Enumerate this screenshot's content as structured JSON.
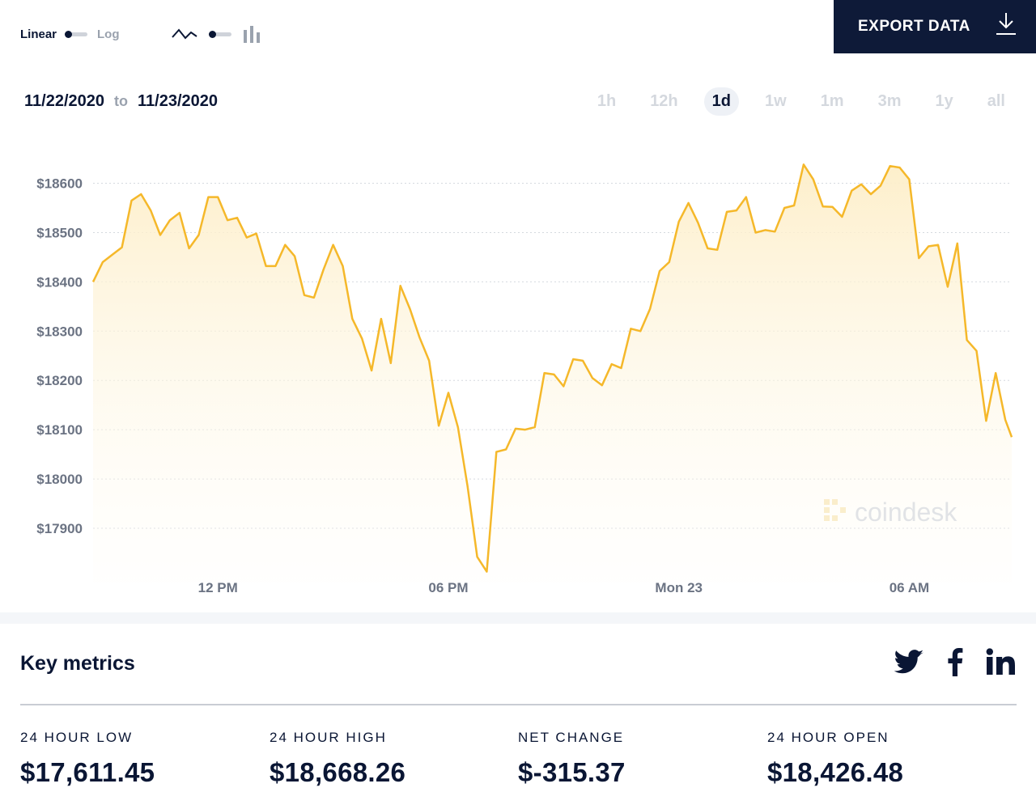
{
  "toolbar": {
    "scale_linear": "Linear",
    "scale_log": "Log",
    "scale_selected": "Linear",
    "chart_type_icons": [
      "line-chart-icon",
      "bar-chart-icon"
    ]
  },
  "export": {
    "label": "EXPORT DATA",
    "icon": "download-icon"
  },
  "date_range": {
    "from": "11/22/2020",
    "to_word": "to",
    "to": "11/23/2020"
  },
  "periods": [
    "1h",
    "12h",
    "1d",
    "1w",
    "1m",
    "3m",
    "1y",
    "all"
  ],
  "period_selected": "1d",
  "watermark": "coindesk",
  "colors": {
    "line": "#f5b82a",
    "fill": "#fdf0cf",
    "dark": "#0e1a38",
    "grid": "#d5d9df"
  },
  "chart_data": {
    "type": "area",
    "title": "",
    "xlabel": "",
    "ylabel": "",
    "y_ticks": [
      "$18600",
      "$18500",
      "$18400",
      "$18300",
      "$18200",
      "$18100",
      "$18000",
      "$17900"
    ],
    "y_tick_values": [
      18600,
      18500,
      18400,
      18300,
      18200,
      18100,
      18000,
      17900
    ],
    "ylim": [
      17790,
      18660
    ],
    "x_ticks": [
      "12 PM",
      "06 PM",
      "Mon 23",
      "06 AM"
    ],
    "x_tick_positions": [
      "2020-11-22 12:00",
      "2020-11-22 18:00",
      "2020-11-23 00:00",
      "2020-11-23 06:00"
    ],
    "xlim": [
      "2020-11-22 08:45",
      "2020-11-23 08:40"
    ],
    "grid": true,
    "legend": "none",
    "series": [
      {
        "x": [
          "2020-11-22 08:45",
          "2020-11-22 09:00",
          "2020-11-22 09:15",
          "2020-11-22 09:30",
          "2020-11-22 09:45",
          "2020-11-22 10:00",
          "2020-11-22 10:15",
          "2020-11-22 10:30",
          "2020-11-22 10:45",
          "2020-11-22 11:00",
          "2020-11-22 11:15",
          "2020-11-22 11:30",
          "2020-11-22 11:45",
          "2020-11-22 12:00",
          "2020-11-22 12:15",
          "2020-11-22 12:30",
          "2020-11-22 12:45",
          "2020-11-22 13:00",
          "2020-11-22 13:15",
          "2020-11-22 13:30",
          "2020-11-22 13:45",
          "2020-11-22 14:00",
          "2020-11-22 14:15",
          "2020-11-22 14:30",
          "2020-11-22 14:45",
          "2020-11-22 15:00",
          "2020-11-22 15:15",
          "2020-11-22 15:30",
          "2020-11-22 15:45",
          "2020-11-22 16:00",
          "2020-11-22 16:15",
          "2020-11-22 16:30",
          "2020-11-22 16:45",
          "2020-11-22 17:00",
          "2020-11-22 17:15",
          "2020-11-22 17:30",
          "2020-11-22 17:45",
          "2020-11-22 18:00",
          "2020-11-22 18:15",
          "2020-11-22 18:30",
          "2020-11-22 18:45",
          "2020-11-22 19:00",
          "2020-11-22 19:15",
          "2020-11-22 19:30",
          "2020-11-22 19:45",
          "2020-11-22 20:00",
          "2020-11-22 20:15",
          "2020-11-22 20:30",
          "2020-11-22 20:45",
          "2020-11-22 21:00",
          "2020-11-22 21:15",
          "2020-11-22 21:30",
          "2020-11-22 21:45",
          "2020-11-22 22:00",
          "2020-11-22 22:15",
          "2020-11-22 22:30",
          "2020-11-22 22:45",
          "2020-11-22 23:00",
          "2020-11-22 23:15",
          "2020-11-22 23:30",
          "2020-11-22 23:45",
          "2020-11-23 00:00",
          "2020-11-23 00:15",
          "2020-11-23 00:30",
          "2020-11-23 00:45",
          "2020-11-23 01:00",
          "2020-11-23 01:15",
          "2020-11-23 01:30",
          "2020-11-23 01:45",
          "2020-11-23 02:00",
          "2020-11-23 02:15",
          "2020-11-23 02:30",
          "2020-11-23 02:45",
          "2020-11-23 03:00",
          "2020-11-23 03:15",
          "2020-11-23 03:30",
          "2020-11-23 03:45",
          "2020-11-23 04:00",
          "2020-11-23 04:15",
          "2020-11-23 04:30",
          "2020-11-23 04:45",
          "2020-11-23 05:00",
          "2020-11-23 05:15",
          "2020-11-23 05:30",
          "2020-11-23 05:45",
          "2020-11-23 06:00",
          "2020-11-23 06:15",
          "2020-11-23 06:30",
          "2020-11-23 06:45",
          "2020-11-23 07:00",
          "2020-11-23 07:15",
          "2020-11-23 07:30",
          "2020-11-23 07:45",
          "2020-11-23 08:00",
          "2020-11-23 08:15",
          "2020-11-23 08:30",
          "2020-11-23 08:40"
        ],
        "y": [
          18400,
          18440,
          18455,
          18470,
          18565,
          18578,
          18545,
          18495,
          18525,
          18540,
          18468,
          18495,
          18572,
          18572,
          18525,
          18530,
          18490,
          18498,
          18432,
          18432,
          18475,
          18452,
          18373,
          18368,
          18425,
          18475,
          18432,
          18325,
          18285,
          18220,
          18325,
          18235,
          18392,
          18345,
          18287,
          18240,
          18108,
          18175,
          18105,
          17985,
          17842,
          17812,
          18055,
          18060,
          18102,
          18100,
          18105,
          18215,
          18212,
          18188,
          18243,
          18240,
          18205,
          18190,
          18233,
          18225,
          18305,
          18300,
          18345,
          18422,
          18440,
          18522,
          18560,
          18520,
          18468,
          18465,
          18542,
          18545,
          18572,
          18500,
          18505,
          18502,
          18550,
          18555,
          18638,
          18608,
          18553,
          18552,
          18532,
          18585,
          18598,
          18578,
          18595,
          18635,
          18632,
          18608,
          18448,
          18472,
          18475,
          18390,
          18478,
          18282,
          18260,
          18118,
          18215,
          18120,
          18085
        ]
      }
    ]
  },
  "metrics": {
    "title": "Key metrics",
    "social_icons": [
      "twitter-icon",
      "facebook-icon",
      "linkedin-icon"
    ],
    "items": [
      {
        "label": "24 HOUR LOW",
        "value": "$17,611.45"
      },
      {
        "label": "24 HOUR HIGH",
        "value": "$18,668.26"
      },
      {
        "label": "NET CHANGE",
        "value": "$-315.37"
      },
      {
        "label": "24 HOUR OPEN",
        "value": "$18,426.48"
      }
    ]
  }
}
